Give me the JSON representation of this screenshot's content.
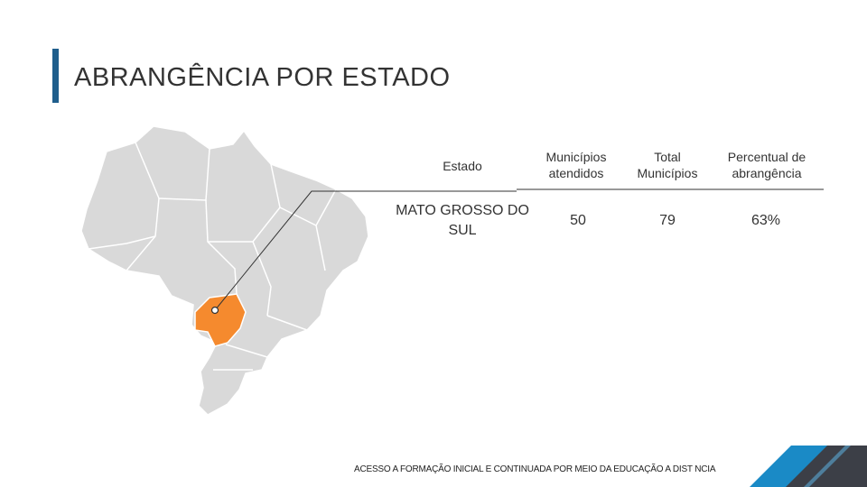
{
  "title": "ABRANGÊNCIA POR ESTADO",
  "table": {
    "headers": {
      "estado": "Estado",
      "atendidos": "Municípios atendidos",
      "total": "Total Municípios",
      "percentual": "Percentual de abrangência"
    },
    "row": {
      "estado": "MATO GROSSO DO SUL",
      "atendidos": "50",
      "total": "79",
      "percentual": "63%"
    }
  },
  "footer": "ACESSO A FORMAÇÃO INICIAL E CONTINUADA POR MEIO DA EDUCAÇÃO A DIST NCIA",
  "colors": {
    "accent": "#1f5e8c",
    "highlight_state": "#f58a2e",
    "map_gray": "#d9d9d9",
    "corner_blue": "#1a8ac6",
    "corner_dark": "#3c3f47"
  }
}
